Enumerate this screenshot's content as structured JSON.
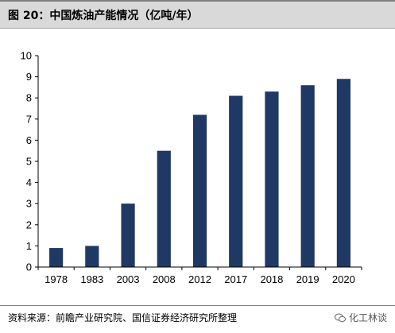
{
  "figure": {
    "title": "图 20：中国炼油产能情况（亿吨/年）"
  },
  "chart_data": {
    "type": "bar",
    "title": "",
    "xlabel": "",
    "ylabel": "",
    "categories": [
      "1978",
      "1983",
      "2003",
      "2008",
      "2012",
      "2017",
      "2018",
      "2019",
      "2020"
    ],
    "values": [
      0.9,
      1.0,
      3.0,
      5.5,
      7.2,
      8.1,
      8.3,
      8.6,
      8.9
    ],
    "ylim": [
      0,
      10
    ],
    "yticks": [
      "0",
      "1",
      "2",
      "3",
      "4",
      "5",
      "6",
      "7",
      "8",
      "9",
      "10"
    ],
    "bar_color": "#203864",
    "grid": false,
    "legend": "none"
  },
  "footer": {
    "source": "资料来源：前瞻产业研究院、国信证券经济研究所整理",
    "brand": "化工林谈"
  }
}
